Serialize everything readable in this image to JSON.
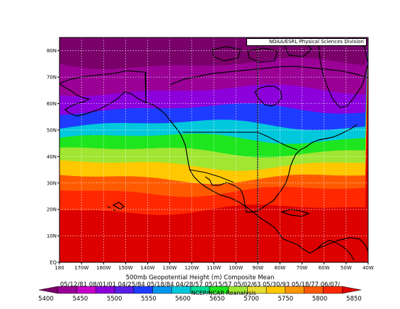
{
  "credit": "NOAA/ESRL Physical Sciences Division",
  "map": {
    "title": "500mb Geopotential Height (m) Composite Mean",
    "date_range": "05/12/81 08/01/01 04/25/84 05/18/84 04/28/57 05/15/57 05/02/63 05/30/93 05/18/77 06/07/",
    "source_overlay": "NCEP/NCAR Reanalysis",
    "lat_ticks": [
      "80N",
      "70N",
      "60N",
      "50N",
      "40N",
      "30N",
      "20N",
      "10N",
      "EQ"
    ],
    "lon_ticks": [
      "180",
      "170W",
      "160W",
      "150W",
      "140W",
      "130W",
      "120W",
      "110W",
      "100W",
      "90W",
      "80W",
      "70W",
      "60W",
      "50W",
      "40W"
    ],
    "extent": {
      "lon_min": -180,
      "lon_max": -40,
      "lat_min": 0,
      "lat_max": 85
    },
    "contour_bands_by_latitude": [
      {
        "lat": 85,
        "value": 5380
      },
      {
        "lat": 75,
        "value": 5420
      },
      {
        "lat": 65,
        "value": 5480
      },
      {
        "lat": 58,
        "value": 5540
      },
      {
        "lat": 52,
        "value": 5600
      },
      {
        "lat": 47,
        "value": 5650
      },
      {
        "lat": 42,
        "value": 5700
      },
      {
        "lat": 37,
        "value": 5750
      },
      {
        "lat": 32,
        "value": 5800
      },
      {
        "lat": 27,
        "value": 5840
      },
      {
        "lat": 20,
        "value": 5860
      },
      {
        "lat": 0,
        "value": 5880
      }
    ]
  },
  "colorbar": {
    "labels": [
      "5400",
      "5450",
      "5500",
      "5550",
      "5600",
      "5650",
      "5700",
      "5750",
      "5800",
      "5850"
    ],
    "colors": [
      "#7a006a",
      "#9a0096",
      "#c800c8",
      "#8c00dc",
      "#5a1ee6",
      "#1e3cff",
      "#0096f0",
      "#00c8dc",
      "#00dc96",
      "#1ee61e",
      "#a0e632",
      "#e6dc32",
      "#ffc800",
      "#ff9600",
      "#ff5a00",
      "#ff2800",
      "#dc0000"
    ]
  }
}
